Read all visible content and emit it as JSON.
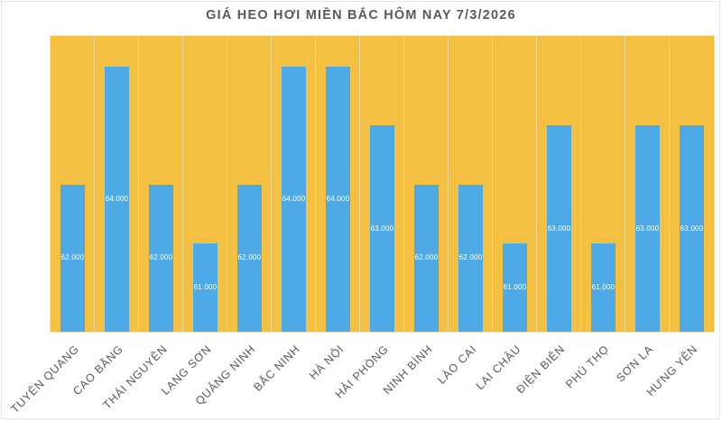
{
  "title": "GIÁ HEO HƠI MIỀN BẮC HÔM NAY 7/3/2026",
  "colors": {
    "background_plot": "#f4c042",
    "bar": "#4eaae6",
    "label_text": "#ffffff",
    "axis_text": "#595959"
  },
  "chart_data": {
    "type": "bar",
    "title": "GIÁ HEO HƠI MIỀN BẮC HÔM NAY 7/3/2026",
    "xlabel": "",
    "ylabel": "",
    "categories": [
      "TUYÊN QUANG",
      "CAO BẰNG",
      "THÁI NGUYÊN",
      "LẠNG SƠN",
      "QUẢNG NINH",
      "BẮC NINH",
      "HÀ NỘI",
      "HẢI PHÒNG",
      "NINH BÌNH",
      "LÀO CAI",
      "LAI CHÂU",
      "ĐIỆN BIÊN",
      "PHÚ THỌ",
      "SƠN LA",
      "HƯNG YÊN"
    ],
    "values": [
      62000,
      64000,
      62000,
      61000,
      62000,
      64000,
      64000,
      63000,
      62000,
      62000,
      61000,
      63000,
      61000,
      63000,
      63000
    ],
    "value_labels": [
      "62.000",
      "64.000",
      "62.000",
      "61.000",
      "62.000",
      "64.000",
      "64.000",
      "63.000",
      "62.000",
      "62.000",
      "61.000",
      "63.000",
      "61.000",
      "63.000",
      "63.000"
    ],
    "ylim": [
      59500,
      64500
    ],
    "y_axis_visible": false,
    "grid": false,
    "legend": "none",
    "data_labels_position": "center"
  }
}
